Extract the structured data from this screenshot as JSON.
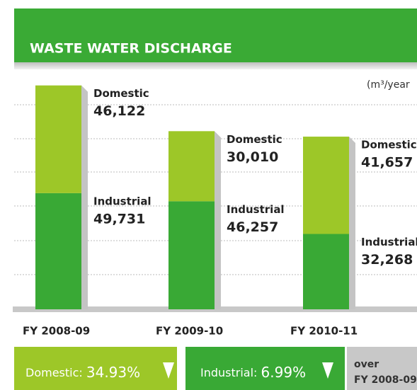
{
  "chart_data": {
    "type": "stacked-bar",
    "title": "WASTE WATER DISCHARGE",
    "unit": "(m³/year",
    "categories": [
      "FY 2008-09",
      "FY 2009-10",
      "FY 2010-11"
    ],
    "series": [
      {
        "name": "Industrial",
        "color": "#39a935",
        "values": [
          49731,
          46257,
          32268
        ],
        "value_labels": [
          "49,731",
          "46,257",
          "32,268"
        ]
      },
      {
        "name": "Domestic",
        "color": "#9dc728",
        "values": [
          46122,
          30010,
          41657
        ],
        "value_labels": [
          "46,122",
          "30,010",
          "41,657"
        ]
      }
    ],
    "ylim": [
      0,
      100000
    ]
  },
  "summary": [
    {
      "label": "Domestic:",
      "change": "34.93%"
    },
    {
      "label": "Industrial:",
      "change": "6.99%"
    }
  ],
  "summary_note": [
    "over",
    "FY 2008-09"
  ]
}
